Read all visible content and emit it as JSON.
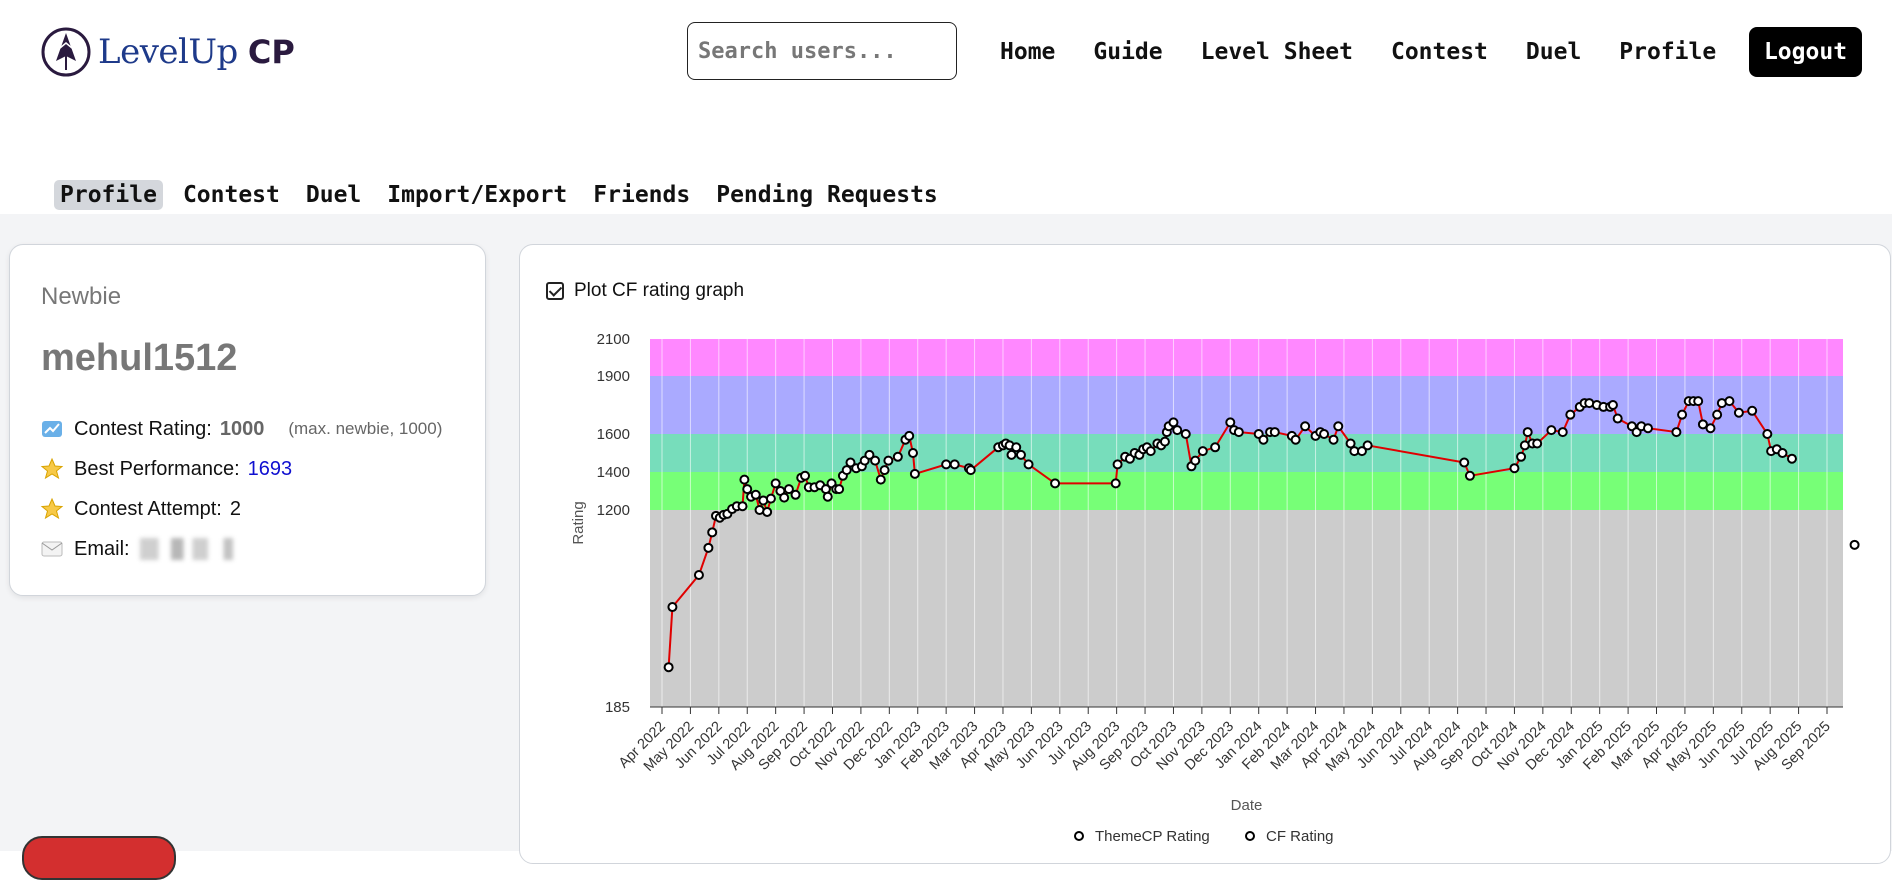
{
  "header": {
    "logo_text": "LevelUp",
    "logo_cp": "CP",
    "search_placeholder": "Search users...",
    "nav": [
      "Home",
      "Guide",
      "Level Sheet",
      "Contest",
      "Duel",
      "Profile"
    ],
    "logout": "Logout"
  },
  "subnav": {
    "items": [
      "Profile",
      "Contest",
      "Duel",
      "Import/Export",
      "Friends",
      "Pending Requests"
    ],
    "active": "Profile"
  },
  "profile": {
    "rank": "Newbie",
    "username": "mehul1512",
    "rating_label": "Contest Rating:",
    "rating_value": "1000",
    "rating_max": "(max. newbie, 1000)",
    "best_label": "Best Performance:",
    "best_value": "1693",
    "attempt_label": "Contest Attempt:",
    "attempt_value": "2",
    "email_label": "Email:"
  },
  "plot_toggle_label": "Plot CF rating graph",
  "colors": {
    "accent_black": "#000000",
    "band_pink": "#ff88ff",
    "band_blue": "#aaaaff",
    "band_teal": "#77ddbb",
    "band_green": "#77ff77",
    "band_gray": "#cccccc",
    "line_red": "#e00000",
    "blue_text": "#1010d0"
  },
  "chart_data": {
    "type": "line",
    "ylabel": "Rating",
    "xlabel": "Date",
    "y_ticks": [
      2100,
      1900,
      1600,
      1400,
      1200,
      185
    ],
    "x_ticks": [
      "Apr 2022",
      "May 2022",
      "Jun 2022",
      "Jul 2022",
      "Aug 2022",
      "Sep 2022",
      "Oct 2022",
      "Nov 2022",
      "Dec 2022",
      "Jan 2023",
      "Feb 2023",
      "Mar 2023",
      "Apr 2023",
      "May 2023",
      "Jun 2023",
      "Jul 2023",
      "Aug 2023",
      "Sep 2023",
      "Oct 2023",
      "Nov 2023",
      "Dec 2023",
      "Jan 2024",
      "Feb 2024",
      "Mar 2024",
      "Apr 2024",
      "May 2024",
      "Jun 2024",
      "Jul 2024",
      "Aug 2024",
      "Sep 2024",
      "Oct 2024",
      "Nov 2024",
      "Dec 2024",
      "Jan 2025",
      "Feb 2025",
      "Mar 2025",
      "Apr 2025",
      "May 2025",
      "Jun 2025",
      "Jul 2025",
      "Aug 2025",
      "Sep 2025"
    ],
    "bands": [
      {
        "from": 1900,
        "to": 2100,
        "color": "#ff88ff"
      },
      {
        "from": 1600,
        "to": 1900,
        "color": "#aaaaff"
      },
      {
        "from": 1400,
        "to": 1600,
        "color": "#77ddbb"
      },
      {
        "from": 1200,
        "to": 1400,
        "color": "#77ff77"
      },
      {
        "from": 185,
        "to": 1200,
        "color": "#cccccc"
      }
    ],
    "legend": [
      "ThemeCP Rating",
      "CF Rating"
    ],
    "series": [
      {
        "name": "CF Rating",
        "points": [
          [
            "2022-04-08",
            390
          ],
          [
            "2022-04-12",
            700
          ],
          [
            "2022-05-10",
            865
          ],
          [
            "2022-05-20",
            1005
          ],
          [
            "2022-05-24",
            1085
          ],
          [
            "2022-05-28",
            1170
          ],
          [
            "2022-06-02",
            1160
          ],
          [
            "2022-06-06",
            1175
          ],
          [
            "2022-06-10",
            1180
          ],
          [
            "2022-06-15",
            1205
          ],
          [
            "2022-06-20",
            1220
          ],
          [
            "2022-06-26",
            1220
          ],
          [
            "2022-06-28",
            1360
          ],
          [
            "2022-07-01",
            1310
          ],
          [
            "2022-07-05",
            1270
          ],
          [
            "2022-07-10",
            1280
          ],
          [
            "2022-07-14",
            1200
          ],
          [
            "2022-07-18",
            1250
          ],
          [
            "2022-07-22",
            1190
          ],
          [
            "2022-07-26",
            1260
          ],
          [
            "2022-08-01",
            1340
          ],
          [
            "2022-08-06",
            1300
          ],
          [
            "2022-08-10",
            1265
          ],
          [
            "2022-08-15",
            1310
          ],
          [
            "2022-08-22",
            1280
          ],
          [
            "2022-08-28",
            1370
          ],
          [
            "2022-09-02",
            1380
          ],
          [
            "2022-09-06",
            1320
          ],
          [
            "2022-09-12",
            1320
          ],
          [
            "2022-09-18",
            1330
          ],
          [
            "2022-09-24",
            1310
          ],
          [
            "2022-09-26",
            1270
          ],
          [
            "2022-09-30",
            1340
          ],
          [
            "2022-10-05",
            1310
          ],
          [
            "2022-10-08",
            1310
          ],
          [
            "2022-10-12",
            1380
          ],
          [
            "2022-10-16",
            1410
          ],
          [
            "2022-10-20",
            1450
          ],
          [
            "2022-10-26",
            1420
          ],
          [
            "2022-11-02",
            1430
          ],
          [
            "2022-11-05",
            1460
          ],
          [
            "2022-11-10",
            1490
          ],
          [
            "2022-11-16",
            1460
          ],
          [
            "2022-11-22",
            1360
          ],
          [
            "2022-11-26",
            1410
          ],
          [
            "2022-11-30",
            1460
          ],
          [
            "2022-12-10",
            1480
          ],
          [
            "2022-12-18",
            1570
          ],
          [
            "2022-12-22",
            1590
          ],
          [
            "2022-12-26",
            1500
          ],
          [
            "2022-12-28",
            1390
          ],
          [
            "2023-02-01",
            1440
          ],
          [
            "2023-02-10",
            1440
          ],
          [
            "2023-02-25",
            1420
          ],
          [
            "2023-02-27",
            1410
          ],
          [
            "2023-03-26",
            1530
          ],
          [
            "2023-04-01",
            1540
          ],
          [
            "2023-04-04",
            1550
          ],
          [
            "2023-04-08",
            1540
          ],
          [
            "2023-04-10",
            1490
          ],
          [
            "2023-04-15",
            1530
          ],
          [
            "2023-04-20",
            1490
          ],
          [
            "2023-04-28",
            1440
          ],
          [
            "2023-05-26",
            1340
          ],
          [
            "2023-07-30",
            1340
          ],
          [
            "2023-08-02",
            1440
          ],
          [
            "2023-08-10",
            1480
          ],
          [
            "2023-08-15",
            1470
          ],
          [
            "2023-08-20",
            1500
          ],
          [
            "2023-08-25",
            1490
          ],
          [
            "2023-08-29",
            1520
          ],
          [
            "2023-09-03",
            1530
          ],
          [
            "2023-09-07",
            1510
          ],
          [
            "2023-09-14",
            1550
          ],
          [
            "2023-09-18",
            1540
          ],
          [
            "2023-09-22",
            1560
          ],
          [
            "2023-09-24",
            1610
          ],
          [
            "2023-09-26",
            1640
          ],
          [
            "2023-10-01",
            1660
          ],
          [
            "2023-10-05",
            1620
          ],
          [
            "2023-10-14",
            1600
          ],
          [
            "2023-10-20",
            1430
          ],
          [
            "2023-10-24",
            1460
          ],
          [
            "2023-11-02",
            1510
          ],
          [
            "2023-11-15",
            1530
          ],
          [
            "2023-12-01",
            1660
          ],
          [
            "2023-12-05",
            1620
          ],
          [
            "2023-12-10",
            1610
          ],
          [
            "2024-01-01",
            1600
          ],
          [
            "2024-01-06",
            1570
          ],
          [
            "2024-01-13",
            1610
          ],
          [
            "2024-01-18",
            1610
          ],
          [
            "2024-02-06",
            1590
          ],
          [
            "2024-02-10",
            1570
          ],
          [
            "2024-02-20",
            1640
          ],
          [
            "2024-03-01",
            1590
          ],
          [
            "2024-03-06",
            1610
          ],
          [
            "2024-03-10",
            1600
          ],
          [
            "2024-03-20",
            1570
          ],
          [
            "2024-03-25",
            1640
          ],
          [
            "2024-04-08",
            1550
          ],
          [
            "2024-04-12",
            1510
          ],
          [
            "2024-04-20",
            1510
          ],
          [
            "2024-04-26",
            1540
          ],
          [
            "2024-08-08",
            1450
          ],
          [
            "2024-08-14",
            1380
          ],
          [
            "2024-10-01",
            1420
          ],
          [
            "2024-10-08",
            1480
          ],
          [
            "2024-10-12",
            1540
          ],
          [
            "2024-10-15",
            1610
          ],
          [
            "2024-10-20",
            1550
          ],
          [
            "2024-10-25",
            1550
          ],
          [
            "2024-11-10",
            1620
          ],
          [
            "2024-11-22",
            1610
          ],
          [
            "2024-11-30",
            1700
          ],
          [
            "2024-12-10",
            1740
          ],
          [
            "2024-12-15",
            1760
          ],
          [
            "2024-12-20",
            1760
          ],
          [
            "2024-12-28",
            1750
          ],
          [
            "2025-01-05",
            1740
          ],
          [
            "2025-01-12",
            1740
          ],
          [
            "2025-01-15",
            1750
          ],
          [
            "2025-01-20",
            1680
          ],
          [
            "2025-02-05",
            1640
          ],
          [
            "2025-02-10",
            1610
          ],
          [
            "2025-02-15",
            1640
          ],
          [
            "2025-02-22",
            1630
          ],
          [
            "2025-03-22",
            1610
          ],
          [
            "2025-03-28",
            1700
          ],
          [
            "2025-04-05",
            1770
          ],
          [
            "2025-04-10",
            1770
          ],
          [
            "2025-04-15",
            1770
          ],
          [
            "2025-04-20",
            1650
          ],
          [
            "2025-04-28",
            1630
          ],
          [
            "2025-05-05",
            1700
          ],
          [
            "2025-05-10",
            1760
          ],
          [
            "2025-05-18",
            1770
          ],
          [
            "2025-05-28",
            1710
          ],
          [
            "2025-06-12",
            1720
          ],
          [
            "2025-06-28",
            1600
          ],
          [
            "2025-07-02",
            1510
          ],
          [
            "2025-07-08",
            1520
          ],
          [
            "2025-07-14",
            1500
          ],
          [
            "2025-07-24",
            1470
          ]
        ]
      },
      {
        "name": "ThemeCP Rating",
        "points": [
          [
            "2025-08-20",
            1000
          ]
        ]
      }
    ]
  }
}
